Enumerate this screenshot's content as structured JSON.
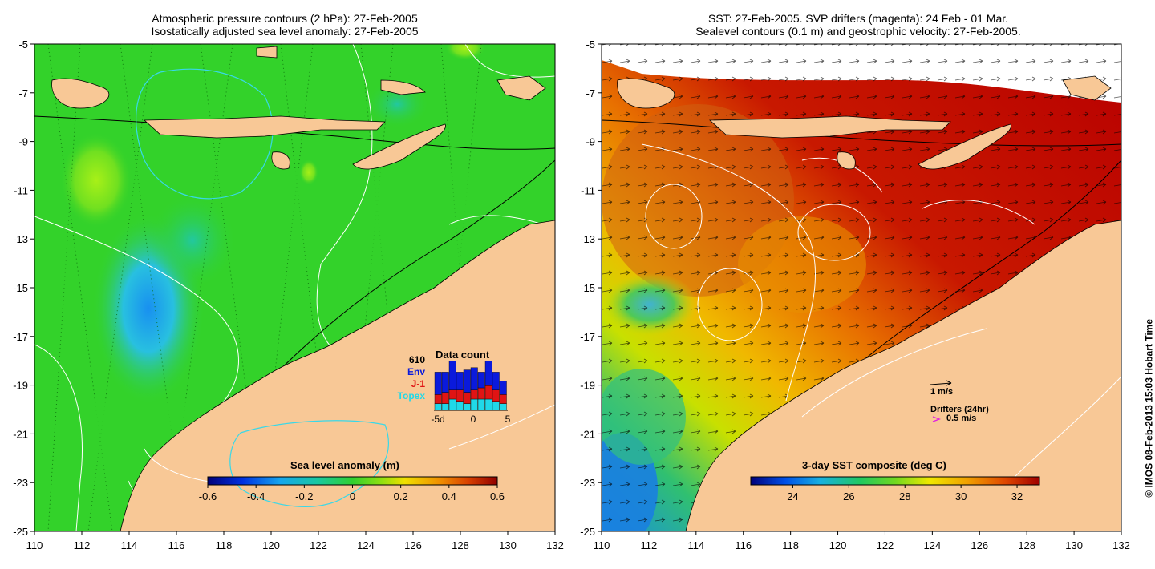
{
  "left_panel": {
    "title_line1": "Atmospheric pressure contours (2 hPa): 27-Feb-2005",
    "title_line2": "Isostatically adjusted sea level anomaly: 27-Feb-2005",
    "colorbar": {
      "label": "Sea level anomaly (m)",
      "range": [
        -0.6,
        0.6
      ],
      "ticks": [
        "-0.6",
        "-0.4",
        "-0.2",
        "0",
        "0.2",
        "0.4",
        "0.6"
      ]
    },
    "data_count": {
      "title": "Data count",
      "total": "610",
      "legend": [
        {
          "name": "Env",
          "color": "#0a1adc"
        },
        {
          "name": "J-1",
          "color": "#e01414"
        },
        {
          "name": "Topex",
          "color": "#20d8e8"
        }
      ],
      "x_ticks": [
        "-5d",
        "0",
        "5"
      ],
      "bars": [
        {
          "day": -5,
          "topex": 3,
          "j1": 4,
          "env": 10
        },
        {
          "day": -4,
          "topex": 3,
          "j1": 5,
          "env": 9
        },
        {
          "day": -3,
          "topex": 5,
          "j1": 4,
          "env": 13
        },
        {
          "day": -2,
          "topex": 4,
          "j1": 5,
          "env": 8
        },
        {
          "day": -1,
          "topex": 3,
          "j1": 5,
          "env": 10
        },
        {
          "day": 0,
          "topex": 5,
          "j1": 4,
          "env": 10
        },
        {
          "day": 1,
          "topex": 5,
          "j1": 5,
          "env": 7
        },
        {
          "day": 2,
          "topex": 5,
          "j1": 6,
          "env": 11
        },
        {
          "day": 3,
          "topex": 4,
          "j1": 5,
          "env": 8
        },
        {
          "day": 4,
          "topex": 3,
          "j1": 4,
          "env": 6
        }
      ]
    }
  },
  "right_panel": {
    "title_line1": "SST: 27-Feb-2005. SVP drifters (magenta): 24 Feb - 01 Mar.",
    "title_line2": "Sealevel contours (0.1 m) and geostrophic velocity: 27-Feb-2005.",
    "colorbar": {
      "label": "3-day SST composite (deg C)",
      "range": [
        22.5,
        32.8
      ],
      "ticks": [
        "24",
        "26",
        "28",
        "30",
        "32"
      ]
    },
    "velocity_key": "1 m/s",
    "drifter_key_title": "Drifters (24hr)",
    "drifter_key_speed": "0.5 m/s"
  },
  "axes": {
    "lon_ticks": [
      "110",
      "112",
      "114",
      "116",
      "118",
      "120",
      "122",
      "124",
      "126",
      "128",
      "130",
      "132"
    ],
    "lat_ticks": [
      "-5",
      "-7",
      "-9",
      "-11",
      "-13",
      "-15",
      "-17",
      "-19",
      "-21",
      "-23",
      "-25"
    ],
    "lon_range": [
      110,
      132
    ],
    "lat_range": [
      -25,
      -5
    ]
  },
  "credit": "© IMOS 08-Feb-2013 15:03 Hobart Time",
  "colors": {
    "land": "#f8c896",
    "ocean_green": "#33d22a",
    "sst_hot": "#b80000"
  }
}
